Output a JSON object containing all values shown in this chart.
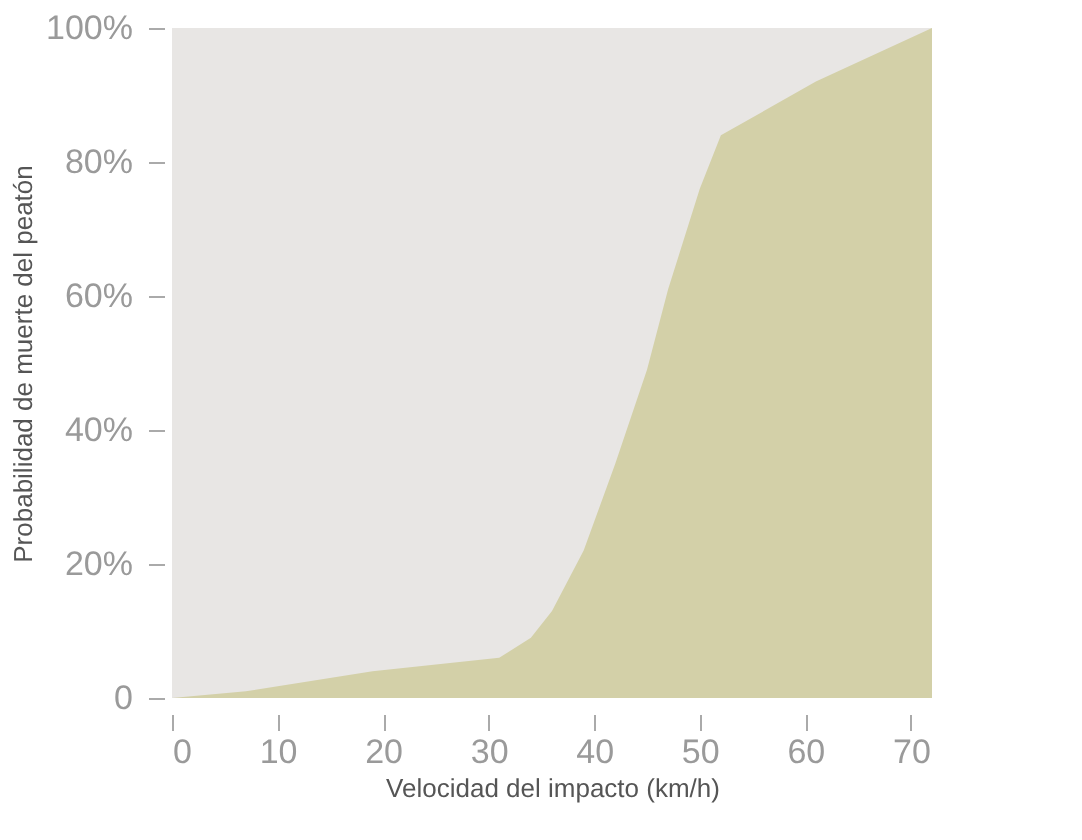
{
  "chart_data": {
    "type": "area",
    "xlabel": "Velocidad del impacto (km/h)",
    "ylabel": "Probabilidad de muerte del peatón",
    "x": [
      0,
      7,
      19,
      31,
      34,
      36,
      39,
      42,
      45,
      47,
      50,
      52,
      61,
      72
    ],
    "series": [
      {
        "color": "#d3d0a8",
        "values": [
          0,
          1,
          4,
          6,
          9,
          13,
          22,
          35,
          49,
          61,
          76,
          84,
          92,
          100
        ]
      }
    ],
    "xlim": [
      0,
      72
    ],
    "xticks": [
      0,
      10,
      20,
      30,
      40,
      50,
      60,
      70
    ],
    "ylim": [
      0,
      100
    ],
    "yticks": [
      {
        "value": 0,
        "label": "0"
      },
      {
        "value": 20,
        "label": "20%"
      },
      {
        "value": 40,
        "label": "40%"
      },
      {
        "value": 60,
        "label": "60%"
      },
      {
        "value": 80,
        "label": "80%"
      },
      {
        "value": 100,
        "label": "100%"
      }
    ],
    "grid": false
  }
}
